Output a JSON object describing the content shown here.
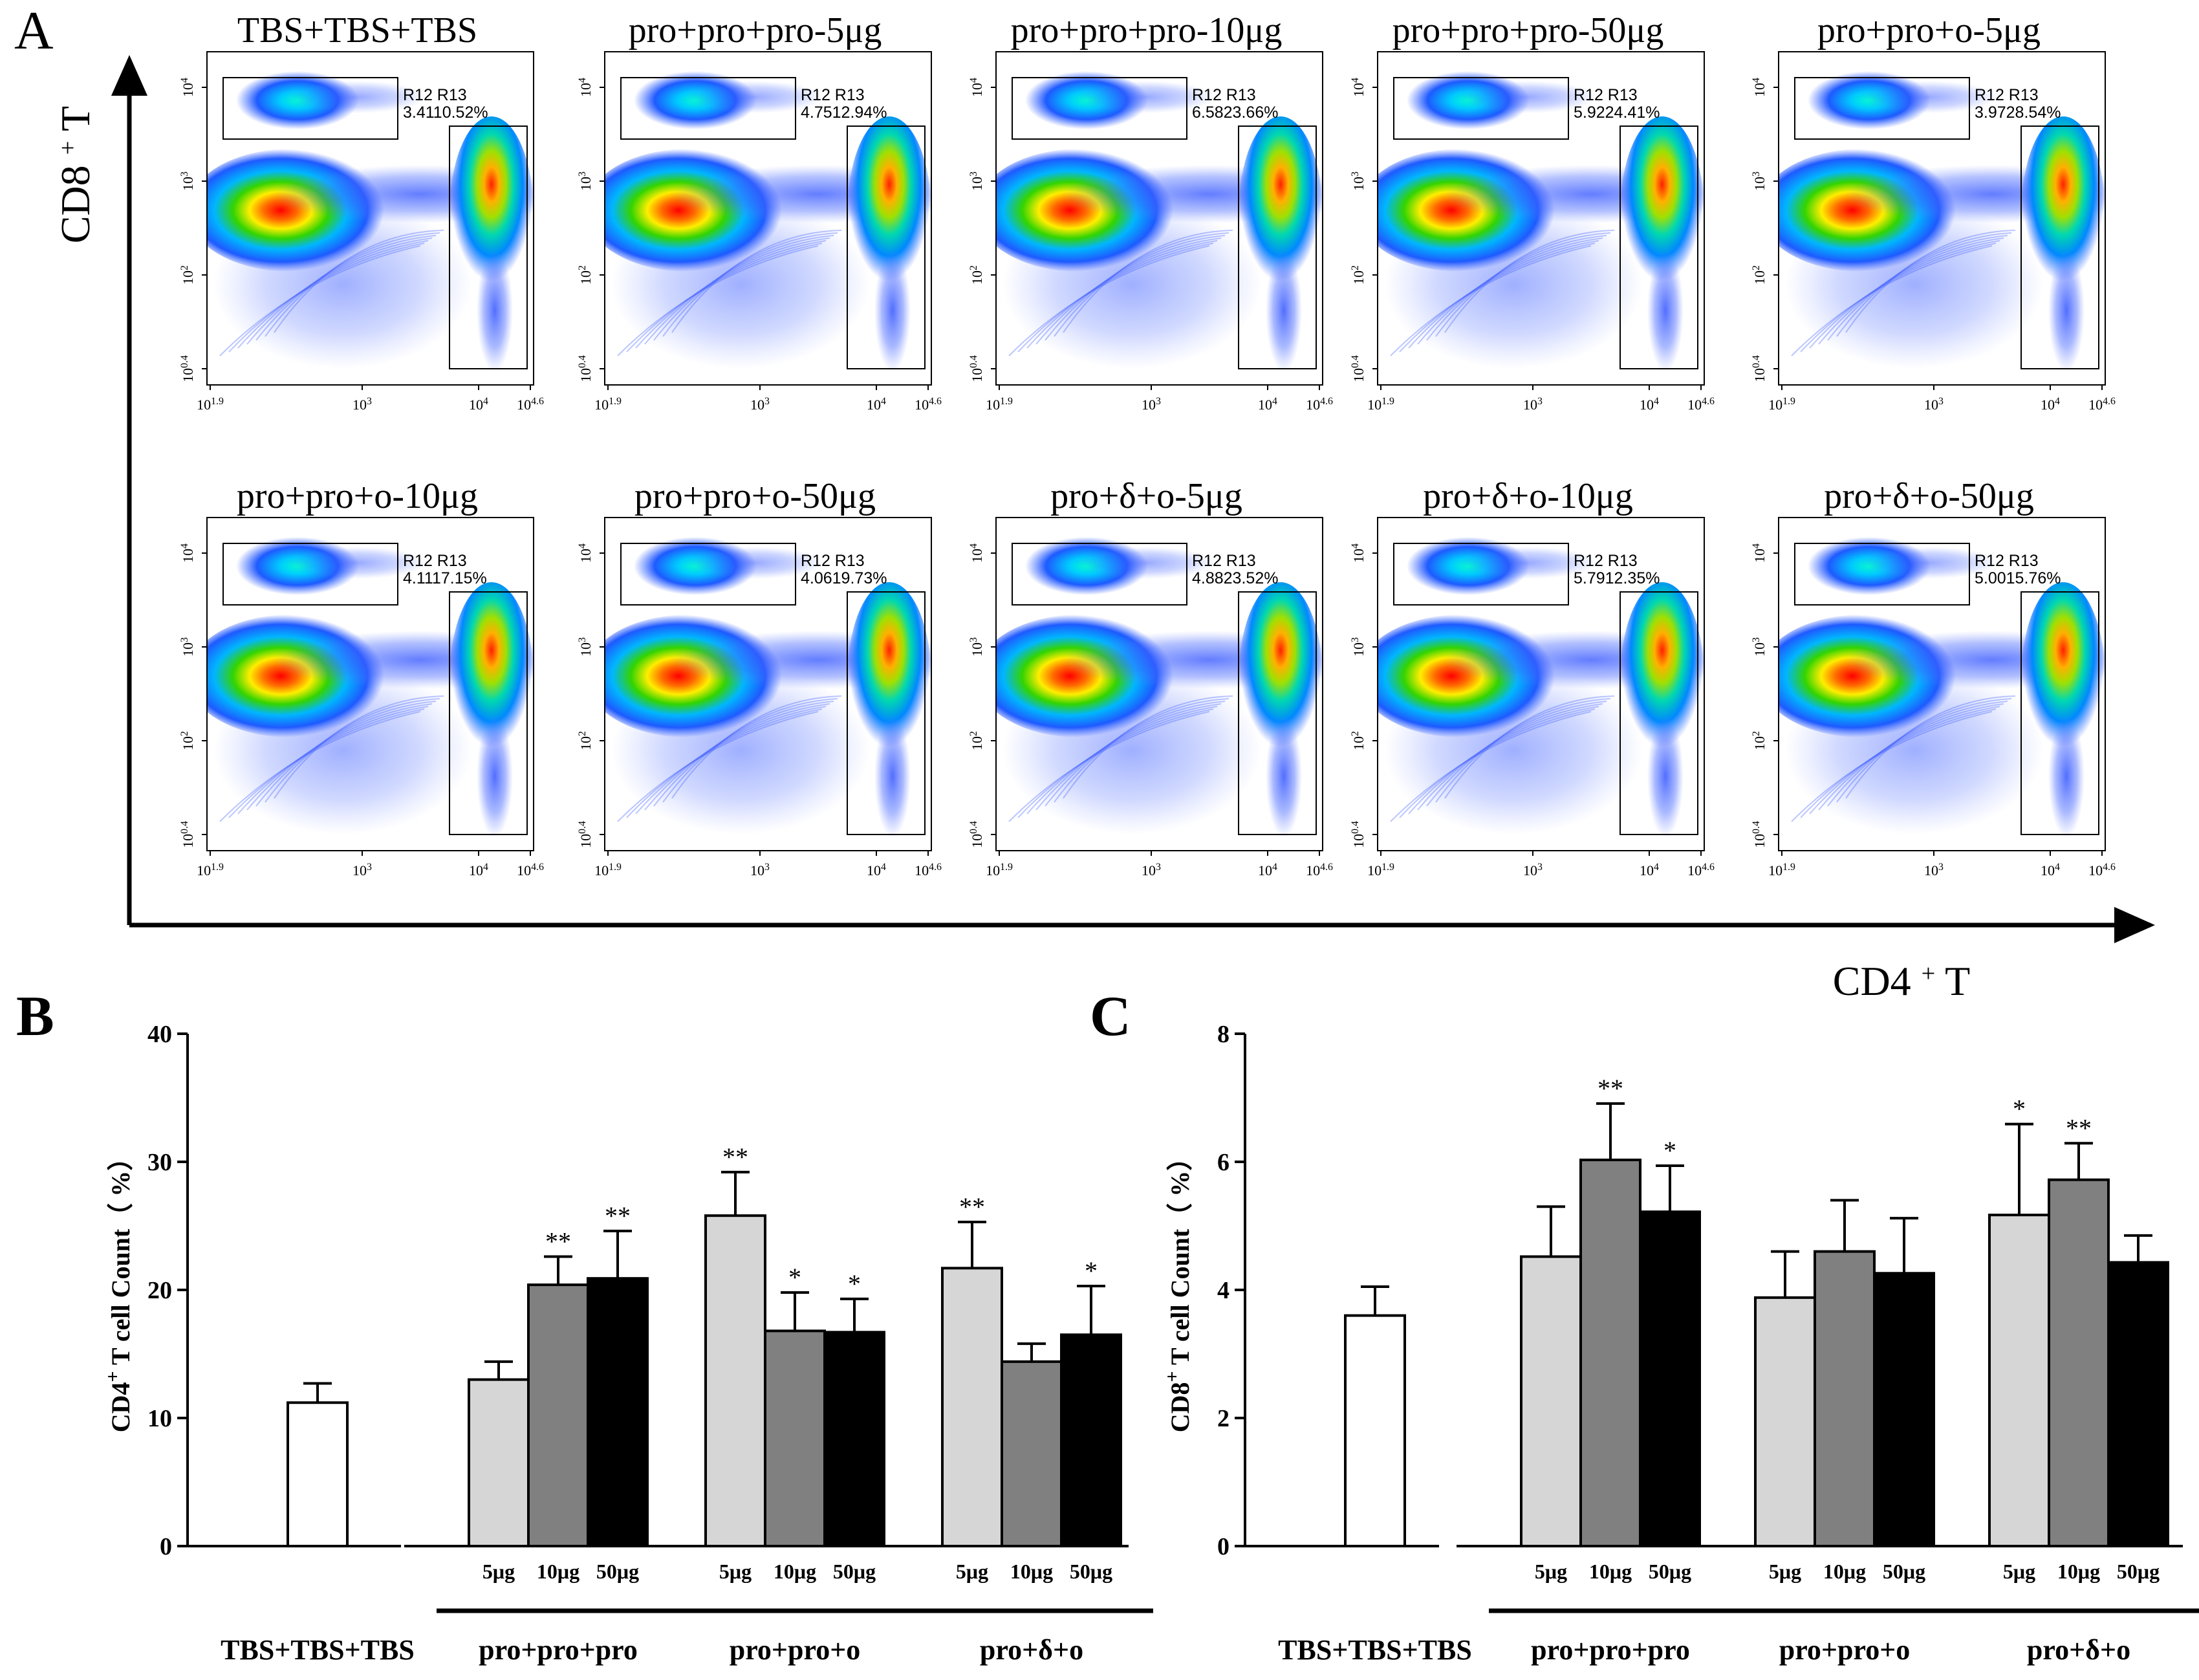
{
  "chart_data": [
    {
      "type": "scatter",
      "panel": "A",
      "xlabel": "CD4+ T",
      "ylabel": "CD8+ T",
      "x_ticks": [
        "10^1.9",
        "10^3",
        "10^4",
        "10^4.6"
      ],
      "y_ticks": [
        "10^0.4",
        "10^2",
        "10^3",
        "10^4"
      ],
      "gate_labels": [
        "R12",
        "R13"
      ],
      "plots": [
        {
          "title": "TBS+TBS+TBS",
          "r12": "3.41",
          "r13": "10.52%"
        },
        {
          "title": "pro+pro+pro-5μg",
          "r12": "4.75",
          "r13": "12.94%"
        },
        {
          "title": "pro+pro+pro-10μg",
          "r12": "6.58",
          "r13": "23.66%"
        },
        {
          "title": "pro+pro+pro-50μg",
          "r12": "5.92",
          "r13": "24.41%"
        },
        {
          "title": "pro+pro+o-5μg",
          "r12": "3.97",
          "r13": "28.54%"
        },
        {
          "title": "pro+pro+o-10μg",
          "r12": "4.11",
          "r13": "17.15%"
        },
        {
          "title": "pro+pro+o-50μg",
          "r12": "4.06",
          "r13": "19.73%"
        },
        {
          "title": "pro+δ+o-5μg",
          "r12": "4.88",
          "r13": "23.52%"
        },
        {
          "title": "pro+δ+o-10μg",
          "r12": "5.79",
          "r13": "12.35%"
        },
        {
          "title": "pro+δ+o-50μg",
          "r12": "5.00",
          "r13": "15.76%"
        }
      ]
    },
    {
      "type": "bar",
      "panel": "B",
      "ylabel": "CD4+ T cell Count（ %）",
      "ylim": [
        0,
        40
      ],
      "yticks": [
        0,
        10,
        20,
        30,
        40
      ],
      "control": {
        "label": "TBS+TBS+TBS",
        "value": 11.2,
        "err": 1.5,
        "sig": ""
      },
      "doses": [
        "5μg",
        "10μg",
        "50μg"
      ],
      "groups": [
        {
          "label": "pro+pro+pro",
          "values": [
            13.0,
            20.4,
            20.9
          ],
          "err": [
            1.4,
            2.2,
            3.7
          ],
          "sig": [
            "",
            "**",
            "**"
          ]
        },
        {
          "label": "pro+pro+o",
          "values": [
            25.8,
            16.8,
            16.7
          ],
          "err": [
            3.4,
            3.0,
            2.6
          ],
          "sig": [
            "**",
            "*",
            "*"
          ]
        },
        {
          "label": "pro+δ+o",
          "values": [
            21.7,
            14.4,
            16.5
          ],
          "err": [
            3.6,
            1.4,
            3.8
          ],
          "sig": [
            "**",
            "",
            "*"
          ]
        }
      ]
    },
    {
      "type": "bar",
      "panel": "C",
      "ylabel": "CD8+ T cell Count（ %）",
      "ylim": [
        0,
        8
      ],
      "yticks": [
        0,
        2,
        4,
        6,
        8
      ],
      "control": {
        "label": "TBS+TBS+TBS",
        "value": 3.6,
        "err": 0.45,
        "sig": ""
      },
      "doses": [
        "5μg",
        "10μg",
        "50μg"
      ],
      "groups": [
        {
          "label": "pro+pro+pro",
          "values": [
            4.52,
            6.03,
            5.22
          ],
          "err": [
            0.78,
            0.88,
            0.72
          ],
          "sig": [
            "",
            "**",
            "*"
          ]
        },
        {
          "label": "pro+pro+o",
          "values": [
            3.88,
            4.6,
            4.26
          ],
          "err": [
            0.72,
            0.8,
            0.86
          ],
          "sig": [
            "",
            "",
            ""
          ]
        },
        {
          "label": "pro+δ+o",
          "values": [
            5.17,
            5.72,
            4.43
          ],
          "err": [
            1.42,
            0.57,
            0.42
          ],
          "sig": [
            "*",
            "**",
            ""
          ]
        }
      ]
    }
  ],
  "colors": {
    "control": "#ffffff",
    "dose_5": "#d6d6d6",
    "dose_10": "#808080",
    "dose_50": "#000000",
    "density_scale": [
      "#0000ff",
      "#00a0ff",
      "#00e0a0",
      "#3ad000",
      "#ffff00",
      "#ff8000",
      "#ff0000"
    ]
  }
}
